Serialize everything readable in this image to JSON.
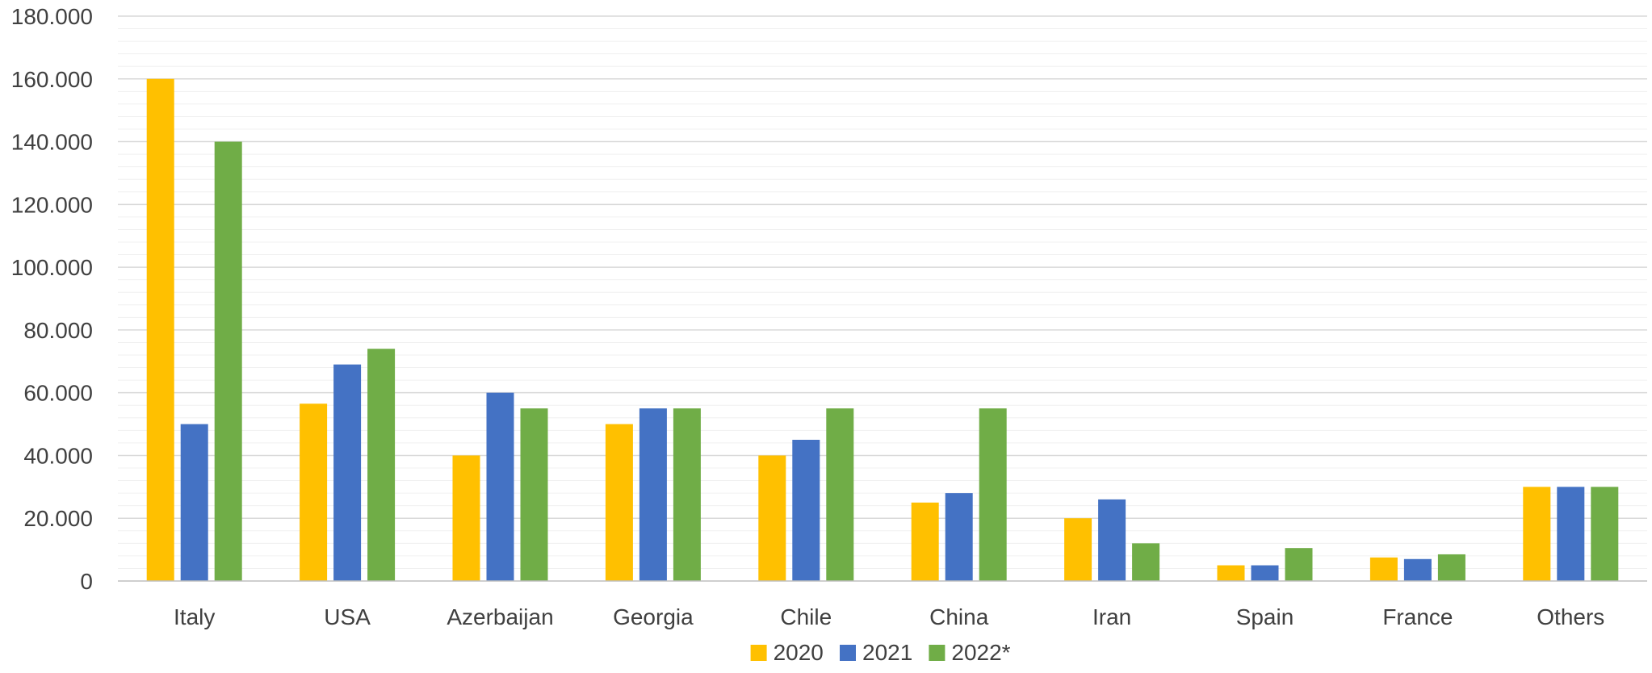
{
  "chart_data": {
    "type": "bar",
    "title": "",
    "xlabel": "",
    "ylabel": "",
    "categories": [
      "Italy",
      "USA",
      "Azerbaijan",
      "Georgia",
      "Chile",
      "China",
      "Iran",
      "Spain",
      "France",
      "Others"
    ],
    "series": [
      {
        "name": "2020",
        "color": "#FFC000",
        "values": [
          160000,
          56500,
          40000,
          50000,
          40000,
          25000,
          20000,
          5000,
          7500,
          30000
        ]
      },
      {
        "name": "2021",
        "color": "#4472C4",
        "values": [
          50000,
          69000,
          60000,
          55000,
          45000,
          28000,
          26000,
          5000,
          7000,
          30000
        ]
      },
      {
        "name": "2022*",
        "color": "#70AD47",
        "values": [
          140000,
          74000,
          55000,
          55000,
          55000,
          55000,
          12000,
          10500,
          8500,
          30000
        ]
      }
    ],
    "ylim": [
      0,
      180000
    ],
    "ytick_step": 20000,
    "ytick_labels": [
      "0",
      "20.000",
      "40.000",
      "60.000",
      "80.000",
      "100.000",
      "120.000",
      "140.000",
      "160.000",
      "180.000"
    ],
    "grid": true,
    "legend_position": "bottom"
  }
}
